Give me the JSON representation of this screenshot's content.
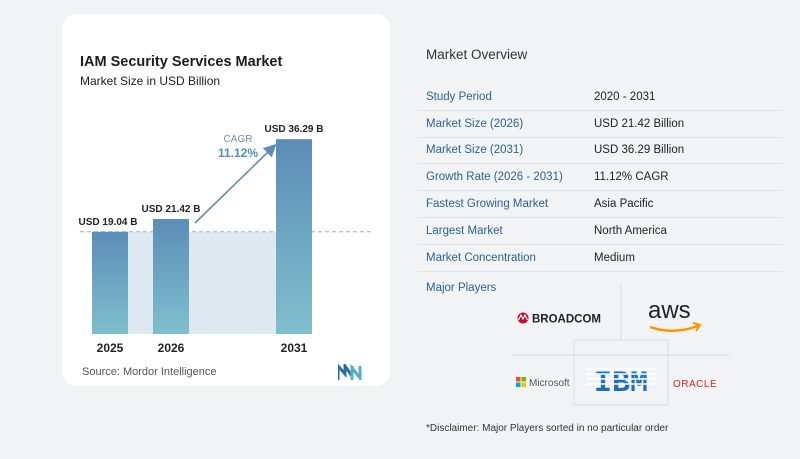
{
  "chart_data": {
    "type": "bar",
    "title": "IAM Security Services Market",
    "subtitle": "Market Size in USD Billion",
    "categories": [
      "2025",
      "2026",
      "2031"
    ],
    "values": [
      19.04,
      21.42,
      36.29
    ],
    "data_labels": [
      "USD 19.04 B",
      "USD 21.42 B",
      "USD 36.29 B"
    ],
    "annotation": {
      "label": "CAGR",
      "value": "11.12%"
    },
    "ylim": [
      0,
      38
    ],
    "grid": false,
    "colors": {
      "bar_top": "#5b8db8",
      "bar_bottom": "#7fbfcc",
      "shade": "#dde8f1",
      "arrow": "#5b8db8",
      "cagr": "#4e8fbd"
    }
  },
  "source": "Source:  Mordor Intelligence",
  "overview": {
    "title": "Market Overview",
    "rows": [
      {
        "label": "Study Period",
        "value": "2020 - 2031"
      },
      {
        "label": "Market Size (2026)",
        "value": "USD 21.42 Billion"
      },
      {
        "label": "Market Size (2031)",
        "value": "USD 36.29 Billion"
      },
      {
        "label": "Growth Rate (2026 - 2031)",
        "value": "11.12% CAGR"
      },
      {
        "label": "Fastest Growing Market",
        "value": "Asia Pacific"
      },
      {
        "label": "Largest Market",
        "value": "North America"
      },
      {
        "label": "Market Concentration",
        "value": "Medium"
      }
    ]
  },
  "players": {
    "title": "Major Players",
    "names": [
      "BROADCOM",
      "aws",
      "Microsoft",
      "IBM",
      "ORACLE"
    ]
  },
  "disclaimer": "*Disclaimer: Major Players sorted in no particular order"
}
